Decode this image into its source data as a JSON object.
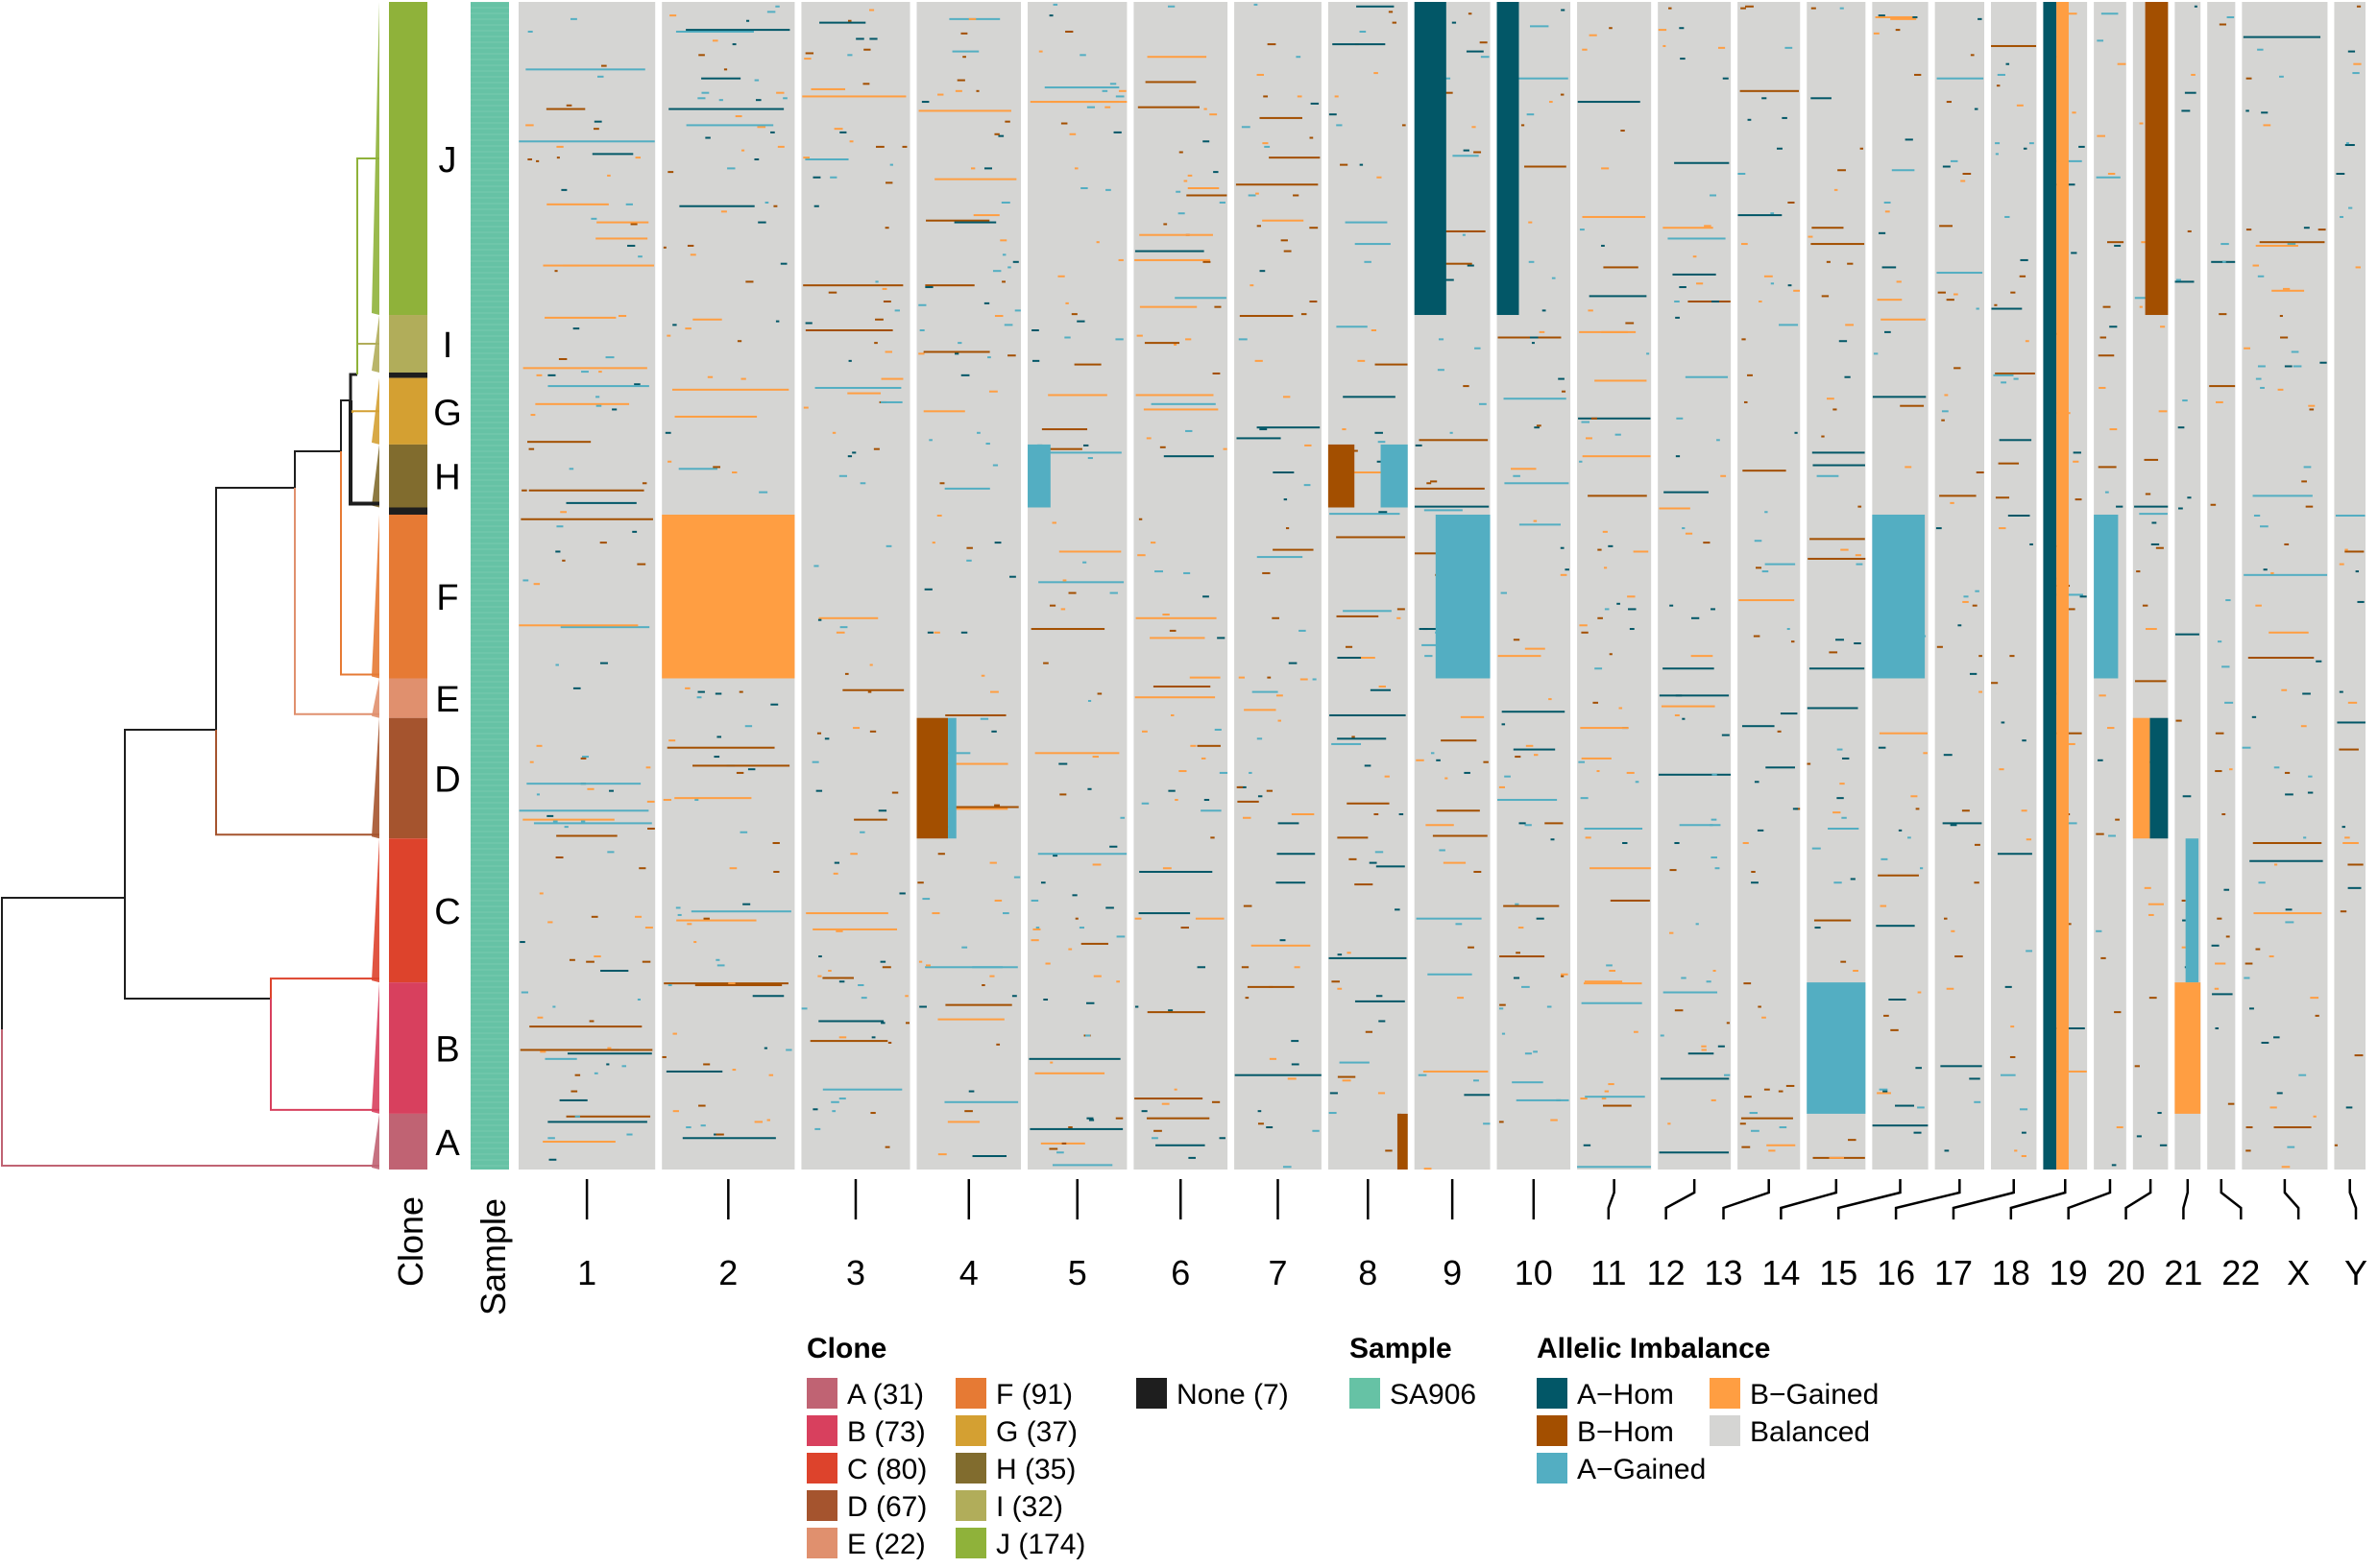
{
  "chart_data": {
    "type": "heatmap",
    "title": "",
    "description": "Single-cell allelic imbalance heatmap with phylogenetic tree, clone and sample annotation tracks",
    "row_annotations": {
      "clone_axis_label": "Clone",
      "sample_axis_label": "Sample",
      "clone_order_top_to_bottom": [
        "J",
        "I",
        "None",
        "G",
        "H",
        "None",
        "F",
        "E",
        "D",
        "C",
        "B",
        "A"
      ],
      "clone_block_fractions_top_to_bottom": [
        {
          "clone": "J",
          "cells": 174
        },
        {
          "clone": "I",
          "cells": 32
        },
        {
          "clone": "None",
          "cells": 3
        },
        {
          "clone": "G",
          "cells": 37
        },
        {
          "clone": "H",
          "cells": 35
        },
        {
          "clone": "None",
          "cells": 4
        },
        {
          "clone": "F",
          "cells": 91
        },
        {
          "clone": "E",
          "cells": 22
        },
        {
          "clone": "D",
          "cells": 67
        },
        {
          "clone": "C",
          "cells": 80
        },
        {
          "clone": "B",
          "cells": 73
        },
        {
          "clone": "A",
          "cells": 31
        }
      ],
      "labeled_clones": [
        "J",
        "I",
        "G",
        "H",
        "F",
        "E",
        "D",
        "C",
        "B",
        "A"
      ],
      "sample": "SA906"
    },
    "x_axis": {
      "label": "",
      "chromosomes": [
        "1",
        "2",
        "3",
        "4",
        "5",
        "6",
        "7",
        "8",
        "9",
        "10",
        "11",
        "12",
        "13",
        "14",
        "15",
        "16",
        "17",
        "18",
        "19",
        "20",
        "21",
        "22",
        "X",
        "Y"
      ],
      "relative_widths": [
        249,
        242,
        198,
        190,
        181,
        171,
        159,
        145,
        138,
        134,
        135,
        133,
        114,
        107,
        102,
        90,
        83,
        80,
        59,
        64,
        47,
        51,
        156,
        57
      ]
    },
    "color_categories": [
      "A-Hom",
      "B-Hom",
      "A-Gained",
      "B-Gained",
      "Balanced"
    ],
    "notable_events": [
      {
        "chromosome": "9",
        "state": "A-Hom",
        "clones": [
          "J"
        ],
        "region": "p-arm (left ~40%)"
      },
      {
        "chromosome": "10",
        "state": "A-Hom",
        "clones": [
          "J"
        ],
        "region": "p-arm (left ~30%)"
      },
      {
        "chromosome": "20",
        "state": "B-Hom",
        "clones": [
          "J"
        ],
        "region": "q-arm"
      },
      {
        "chromosome": "18",
        "state": "A-Hom",
        "clones": [
          "all"
        ],
        "region": "p-arm narrow"
      },
      {
        "chromosome": "18",
        "state": "B-Gained",
        "clones": [
          "all"
        ],
        "region": "adjacent narrow band"
      },
      {
        "chromosome": "2",
        "state": "B-Gained",
        "clones": [
          "F"
        ],
        "region": "whole arm"
      },
      {
        "chromosome": "9",
        "state": "A-Gained",
        "clones": [
          "F"
        ],
        "region": "p-arm"
      },
      {
        "chromosome": "15",
        "state": "A-Gained",
        "clones": [
          "F"
        ],
        "region": "most of chromosome"
      },
      {
        "chromosome": "19",
        "state": "A-Gained",
        "clones": [
          "F"
        ],
        "region": "q-arm"
      },
      {
        "chromosome": "4",
        "state": "B-Hom",
        "clones": [
          "D"
        ],
        "region": "p-arm"
      },
      {
        "chromosome": "20",
        "state": "A-Hom",
        "clones": [
          "D"
        ],
        "region": "q-arm"
      },
      {
        "chromosome": "20",
        "state": "B-Gained",
        "clones": [
          "D"
        ],
        "region": "p-arm"
      },
      {
        "chromosome": "21",
        "state": "A-Gained",
        "clones": [
          "C"
        ],
        "region": "q-arm"
      },
      {
        "chromosome": "21",
        "state": "B-Gained",
        "clones": [
          "B"
        ],
        "region": "whole"
      },
      {
        "chromosome": "14",
        "state": "A-Gained",
        "clones": [
          "B"
        ],
        "region": "whole"
      },
      {
        "chromosome": "8",
        "state": "B-Hom",
        "clones": [
          "H"
        ],
        "region": "p-arm"
      },
      {
        "chromosome": "8",
        "state": "A-Gained",
        "clones": [
          "H"
        ],
        "region": "q-arm"
      },
      {
        "chromosome": "8",
        "state": "B-Hom",
        "clones": [
          "A"
        ],
        "region": "distal q"
      },
      {
        "chromosome": "5",
        "state": "A-Gained",
        "clones": [
          "H"
        ],
        "region": "p-arm"
      }
    ]
  },
  "legend": {
    "clone": {
      "title": "Clone",
      "items": [
        {
          "label": "A (31)",
          "color": "#C06373"
        },
        {
          "label": "B (73)",
          "color": "#D8405E"
        },
        {
          "label": "C (80)",
          "color": "#DD432C"
        },
        {
          "label": "D (67)",
          "color": "#A5542E"
        },
        {
          "label": "E (22)",
          "color": "#E0906E"
        },
        {
          "label": "F (91)",
          "color": "#E67A34"
        },
        {
          "label": "G (37)",
          "color": "#D4A032"
        },
        {
          "label": "H (35)",
          "color": "#816C2E"
        },
        {
          "label": "I (32)",
          "color": "#B1AD5A"
        },
        {
          "label": "J (174)",
          "color": "#8FB23A"
        },
        {
          "label": "None (7)",
          "color": "#1E1E1E"
        }
      ]
    },
    "sample": {
      "title": "Sample",
      "items": [
        {
          "label": "SA906",
          "color": "#66C2A5"
        }
      ]
    },
    "allelic_imbalance": {
      "title": "Allelic Imbalance",
      "items": [
        {
          "label": "A−Hom",
          "color": "#025767"
        },
        {
          "label": "B−Hom",
          "color": "#A34F00"
        },
        {
          "label": "A−Gained",
          "color": "#53AEC2"
        },
        {
          "label": "B−Gained",
          "color": "#FF9E42"
        },
        {
          "label": "Balanced",
          "color": "#D5D5D3"
        }
      ]
    }
  }
}
